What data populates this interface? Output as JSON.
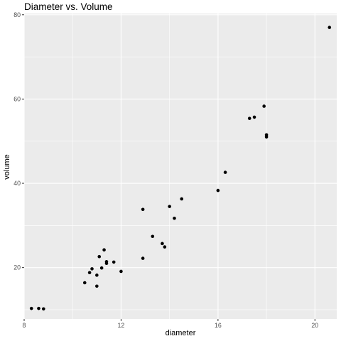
{
  "chart_data": {
    "type": "scatter",
    "title": "Diameter vs. Volume",
    "xlabel": "diameter",
    "ylabel": "volume",
    "xlim": [
      8.0,
      20.9
    ],
    "ylim": [
      7.8,
      80.3
    ],
    "x_ticks": [
      8,
      12,
      16,
      20
    ],
    "y_ticks": [
      20,
      40,
      60,
      80
    ],
    "grid": true,
    "point_color": "#000000",
    "panel_color": "#ebebeb",
    "grid_color": "#ffffff",
    "points": [
      {
        "x": 8.3,
        "y": 10.3
      },
      {
        "x": 8.6,
        "y": 10.3
      },
      {
        "x": 8.8,
        "y": 10.2
      },
      {
        "x": 10.5,
        "y": 16.4
      },
      {
        "x": 10.7,
        "y": 18.8
      },
      {
        "x": 10.8,
        "y": 19.7
      },
      {
        "x": 11.0,
        "y": 15.6
      },
      {
        "x": 11.0,
        "y": 18.2
      },
      {
        "x": 11.1,
        "y": 22.6
      },
      {
        "x": 11.2,
        "y": 19.9
      },
      {
        "x": 11.3,
        "y": 24.2
      },
      {
        "x": 11.4,
        "y": 21.0
      },
      {
        "x": 11.4,
        "y": 21.4
      },
      {
        "x": 11.7,
        "y": 21.3
      },
      {
        "x": 12.0,
        "y": 19.1
      },
      {
        "x": 12.9,
        "y": 22.2
      },
      {
        "x": 12.9,
        "y": 33.8
      },
      {
        "x": 13.3,
        "y": 27.4
      },
      {
        "x": 13.7,
        "y": 25.7
      },
      {
        "x": 13.8,
        "y": 24.9
      },
      {
        "x": 14.0,
        "y": 34.5
      },
      {
        "x": 14.2,
        "y": 31.7
      },
      {
        "x": 14.5,
        "y": 36.3
      },
      {
        "x": 16.0,
        "y": 38.3
      },
      {
        "x": 16.3,
        "y": 42.6
      },
      {
        "x": 17.3,
        "y": 55.4
      },
      {
        "x": 17.5,
        "y": 55.7
      },
      {
        "x": 17.9,
        "y": 58.3
      },
      {
        "x": 18.0,
        "y": 51.5
      },
      {
        "x": 18.0,
        "y": 51.0
      },
      {
        "x": 20.6,
        "y": 77.0
      }
    ]
  }
}
